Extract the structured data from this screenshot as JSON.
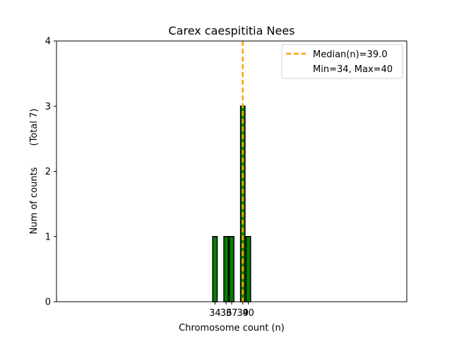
{
  "chart_data": {
    "type": "bar",
    "title": "Carex caespititia Nees",
    "xlabel": "Chromosome count (n)",
    "ylabel": "Num of counts",
    "ylabel_total": "(Total 7)",
    "xlim": [
      5.5,
      68.5
    ],
    "ylim": [
      0,
      4
    ],
    "yticks": [
      0,
      1,
      2,
      3,
      4
    ],
    "xticks": [
      34,
      36,
      37,
      39,
      40
    ],
    "bar_width": 0.8,
    "x": [
      34,
      36,
      37,
      39,
      40
    ],
    "values": [
      1,
      1,
      1,
      3,
      1
    ],
    "bar_color": "#008000",
    "bar_edge_color": "#000000",
    "median": 39.0,
    "median_color": "#FFA500",
    "legend": {
      "placement": "top-right",
      "entries": [
        "Median(n)=39.0",
        "Min=34, Max=40"
      ]
    },
    "grid": false
  }
}
